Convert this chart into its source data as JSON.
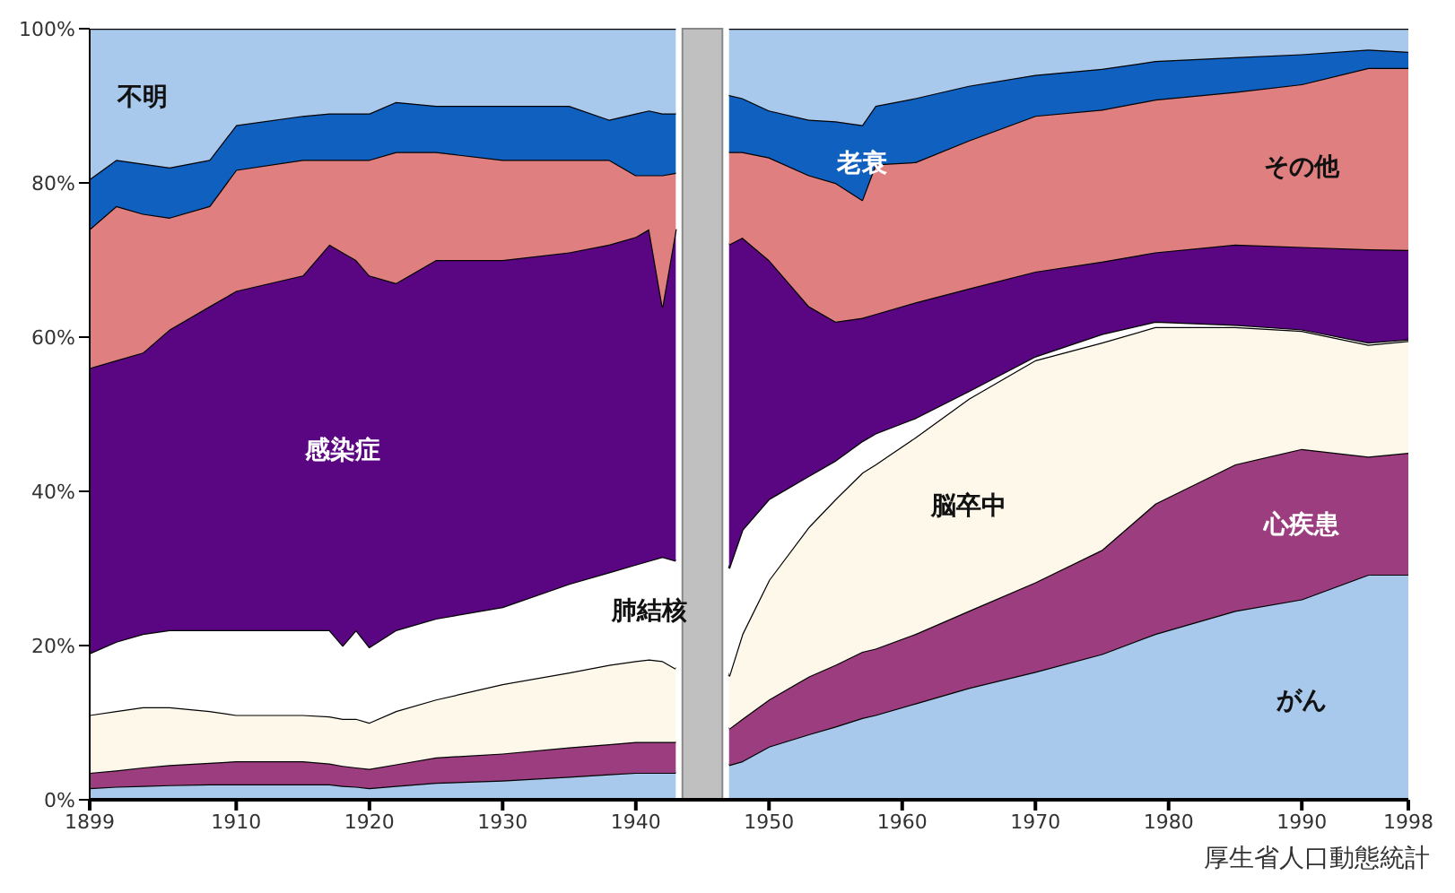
{
  "chart_data": {
    "type": "area",
    "stacked": true,
    "x": [
      1899,
      1901,
      1903,
      1905,
      1908,
      1910,
      1915,
      1917,
      1918,
      1919,
      1920,
      1922,
      1925,
      1930,
      1935,
      1938,
      1940,
      1941,
      1942,
      1943,
      1945,
      1947,
      1948,
      1950,
      1953,
      1955,
      1957,
      1958,
      1961,
      1965,
      1970,
      1975,
      1979,
      1985,
      1990,
      1995,
      1998
    ],
    "series": [
      {
        "name": "がん",
        "color": "#a8c8ec",
        "values": [
          1.5,
          1.7,
          1.8,
          1.9,
          2,
          2,
          2,
          2,
          1.8,
          1.7,
          1.5,
          1.8,
          2.2,
          2.5,
          3,
          3.3,
          3.5,
          3.5,
          3.5,
          3.5,
          null,
          4.5,
          5,
          6.9,
          8.5,
          9.5,
          10.6,
          11,
          12.5,
          14.5,
          16.6,
          18.9,
          21.5,
          24.5,
          26,
          29.2,
          29.2
        ]
      },
      {
        "name": "心疾患",
        "color": "#9b3d7e",
        "values": [
          2,
          2.1,
          2.4,
          2.6,
          2.8,
          3,
          3,
          2.7,
          2.6,
          2.5,
          2.5,
          2.8,
          3.3,
          3.5,
          3.8,
          3.9,
          4,
          4,
          4,
          4,
          null,
          4.7,
          5.5,
          6.1,
          7.5,
          8,
          8.6,
          8.6,
          9,
          10,
          11.6,
          13.5,
          16.9,
          19,
          19.5,
          15.3,
          15.8
        ]
      },
      {
        "name": "脳卒中",
        "color": "#fdf8ea",
        "values": [
          7.5,
          7.7,
          7.8,
          7.5,
          6.7,
          6,
          6,
          6.1,
          6.1,
          6.3,
          6,
          6.9,
          7.5,
          9,
          9.7,
          10.3,
          10.5,
          10.7,
          10.5,
          9.5,
          null,
          6.8,
          11,
          15.5,
          19.4,
          21.5,
          23.2,
          23.9,
          25.5,
          27.5,
          28.8,
          26.9,
          22.9,
          17.8,
          15.3,
          14.5,
          14.5
        ]
      },
      {
        "name": "肺結核",
        "color": "#ffffff",
        "values": [
          8,
          9,
          9.5,
          10,
          10.5,
          11,
          11,
          11.2,
          9.5,
          11.5,
          9.8,
          10.5,
          10.5,
          10,
          11.5,
          12,
          12.5,
          12.8,
          13.5,
          14,
          null,
          14,
          13.5,
          10.5,
          6.6,
          5,
          4.1,
          4,
          2.5,
          1,
          0.5,
          1.1,
          0.7,
          0.3,
          0.2,
          0.3,
          0.2
        ]
      },
      {
        "name": "感染症",
        "color": "#5a0582",
        "values": [
          37,
          36.5,
          36.5,
          39,
          42,
          44,
          46,
          50,
          51,
          48,
          48.2,
          45,
          46.5,
          45,
          43,
          42.5,
          42.5,
          43,
          32.5,
          43,
          null,
          42,
          37.9,
          31,
          22,
          18,
          16,
          15.5,
          15,
          13.3,
          11,
          9.4,
          9,
          10.4,
          10.7,
          12.1,
          11.6
        ]
      },
      {
        "name": "その他",
        "color": "#e07f7f",
        "values": [
          18,
          20,
          18,
          14.5,
          13,
          15.7,
          15,
          11,
          12,
          13,
          15,
          17,
          14,
          13,
          12,
          11,
          8,
          7,
          17,
          7.3,
          null,
          12,
          11.1,
          13.3,
          17,
          18,
          15.3,
          19.4,
          18.2,
          19.2,
          20.2,
          19.7,
          19.8,
          19.8,
          21.1,
          23.5,
          23.6
        ]
      },
      {
        "name": "老衰",
        "color": "#1060c0",
        "values": [
          6.5,
          6,
          6.5,
          6.5,
          6,
          5.8,
          5.7,
          6,
          6,
          6,
          6,
          6.5,
          6,
          7,
          7,
          5.2,
          8,
          8.4,
          8,
          7.7,
          null,
          7.4,
          7,
          6.1,
          7.2,
          8,
          9.7,
          7.6,
          8.3,
          7.1,
          5.3,
          5.3,
          5,
          4.5,
          3.9,
          2.4,
          2.1
        ]
      },
      {
        "name": "不明",
        "color": "#a8c8ec",
        "values": [
          19.5,
          17,
          17.5,
          18,
          17,
          12.5,
          11.3,
          11,
          11,
          11,
          11,
          9.5,
          10,
          10,
          10,
          11.8,
          11,
          10.6,
          11,
          11,
          null,
          8.6,
          9,
          10.6,
          11.8,
          12,
          12.5,
          10,
          9,
          7.4,
          6,
          5.2,
          4.2,
          3.7,
          3.3,
          2.7,
          3
        ]
      }
    ],
    "xlim": [
      1899,
      1998
    ],
    "xticks": [
      1899,
      1910,
      1920,
      1930,
      1940,
      1950,
      1960,
      1970,
      1980,
      1990,
      1998
    ],
    "ylim": [
      0,
      100
    ],
    "yticks": [
      {
        "value": 0,
        "label": "0%"
      },
      {
        "value": 20,
        "label": "20%"
      },
      {
        "value": 40,
        "label": "40%"
      },
      {
        "value": 60,
        "label": "60%"
      },
      {
        "value": 80,
        "label": "80%"
      },
      {
        "value": 100,
        "label": "100%"
      }
    ],
    "bands": [
      {
        "axis": "x",
        "from": 1943.5,
        "to": 1946.5,
        "color": "#c0c0c0"
      }
    ],
    "annotations": [
      "厚生省人口動態統計"
    ],
    "legend": false,
    "grid": false
  }
}
